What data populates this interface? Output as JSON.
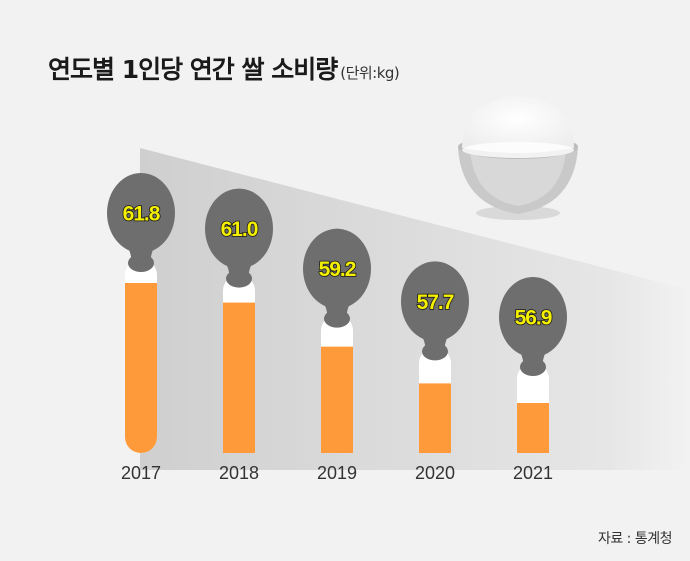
{
  "title": "연도별 1인당 연간 쌀 소비량",
  "unit": "(단위:kg)",
  "source": "자료 : 통계청",
  "colors": {
    "background": "#f2f2f2",
    "bar": "#ff9a3a",
    "spoon": "#6e6e6e",
    "label_fill": "#f4f000",
    "bowl": "#cfcfcf"
  },
  "icons": [
    "rice-bowl-icon",
    "spoon-icon"
  ],
  "chart_data": {
    "type": "bar",
    "categories": [
      "2017",
      "2018",
      "2019",
      "2020",
      "2021"
    ],
    "values": [
      61.8,
      61.0,
      59.2,
      57.7,
      56.9
    ],
    "data_labels": [
      "61.8",
      "61.0",
      "59.2",
      "57.7",
      "56.9"
    ],
    "title": "연도별 1인당 연간 쌀 소비량",
    "unit": "(단위:kg)",
    "grid": false,
    "legend": "none"
  }
}
